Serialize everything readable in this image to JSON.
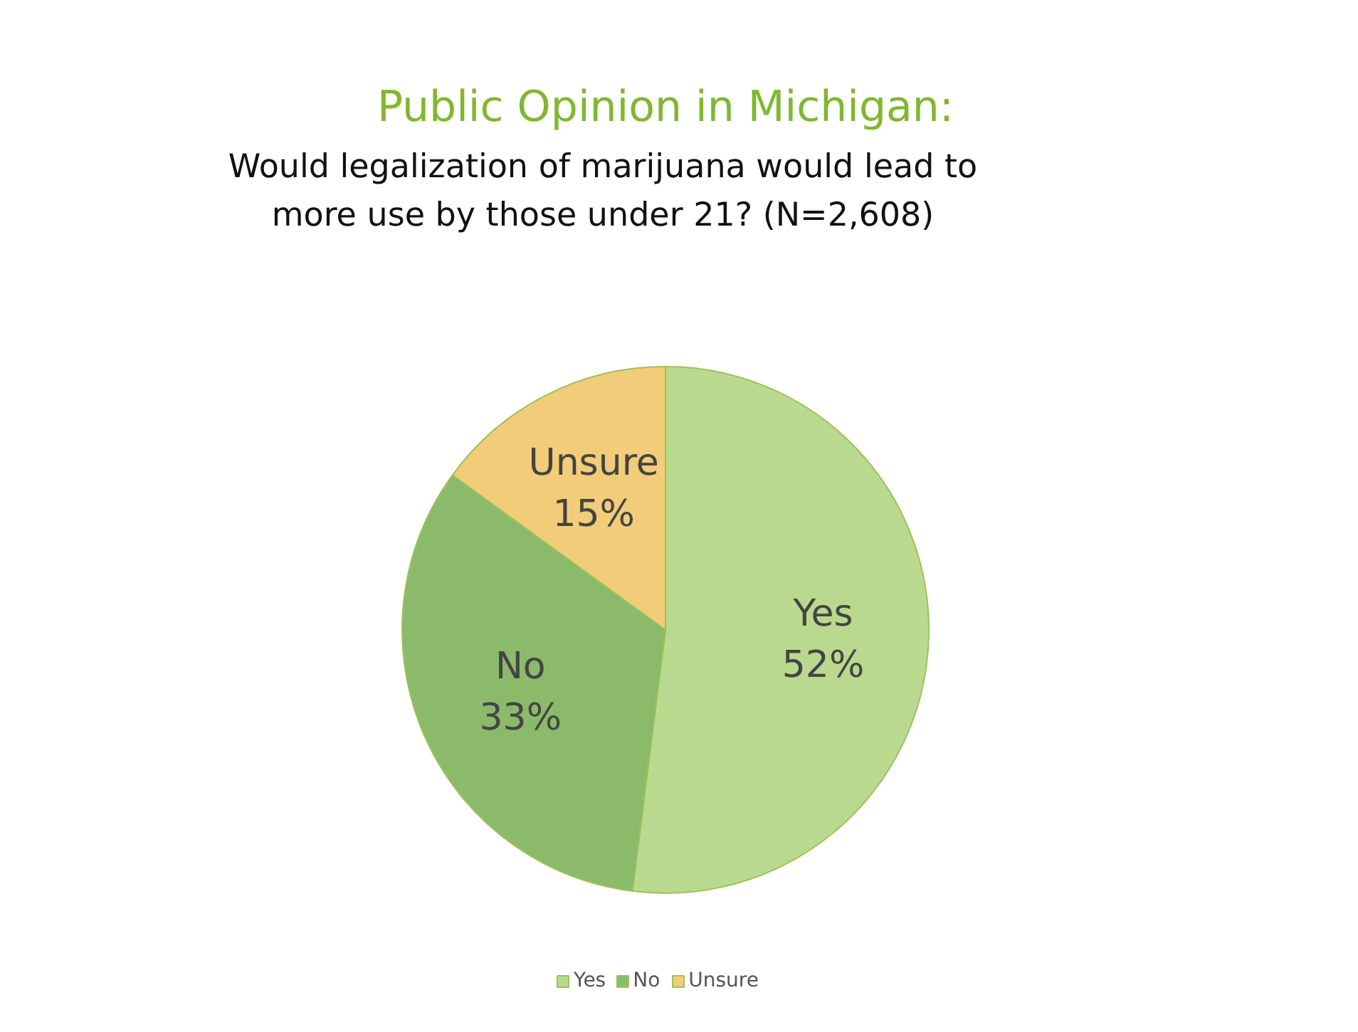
{
  "chart_data": {
    "type": "pie",
    "title": "Public Opinion in Michigan:",
    "subtitle": "Would legalization of marijuana would lead to more use by those under 21? (N=2,608)",
    "categories": [
      "Yes",
      "No",
      "Unsure"
    ],
    "values": [
      52,
      33,
      15
    ],
    "value_labels": [
      "52%",
      "33%",
      "15%"
    ],
    "colors": [
      "#b9da8e",
      "#8bba6b",
      "#f2cc78"
    ],
    "legend": "bottom"
  }
}
